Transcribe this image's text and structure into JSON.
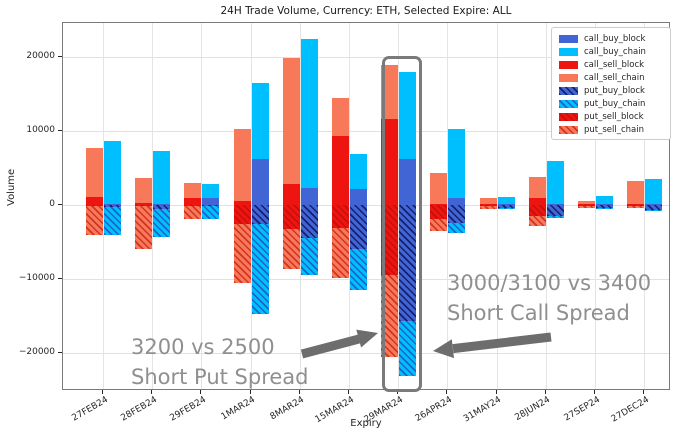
{
  "title": "24H Trade Volume, Currency: ETH, Selected Expire: ALL",
  "y_axis": {
    "label": "Volume",
    "tick_labels": [
      "20000",
      "10000",
      "0",
      "−10000",
      "−20000"
    ]
  },
  "x_axis": {
    "label": "Expiry"
  },
  "legend": {
    "position": "upper right",
    "items": [
      "call_buy_block",
      "call_buy_chain",
      "call_sell_block",
      "call_sell_chain",
      "put_buy_block",
      "put_buy_chain",
      "put_sell_block",
      "put_sell_chain"
    ]
  },
  "annotations": {
    "put_spread": {
      "line1": "3200 vs 2500",
      "line2": "Short Put Spread"
    },
    "call_spread": {
      "line1": "3000/3100 vs 3400",
      "line2": "Short Call Spread"
    }
  },
  "colors": {
    "royalblue": "#4165d4",
    "deepskyblue": "#00bfff",
    "red": "#ee1410",
    "coral": "#f8795a",
    "hatch_navy": "#14206e",
    "hatch_blue": "#1f63c8",
    "hatch_red": "#d23322",
    "hatch_darkred": "#c50f0c",
    "grid": "#e1e1e1",
    "annotation_gray": "#8f8f8f",
    "arrow_gray": "#6d6d6d",
    "highlight_box_gray": "#7a7a7a"
  },
  "chart_data": {
    "type": "bar",
    "stacked": true,
    "grid": true,
    "ylim": [
      -25100,
      24600
    ],
    "y_ticks": [
      20000,
      10000,
      0,
      -10000,
      -20000
    ],
    "categories": [
      "27FEB24",
      "28FEB24",
      "29FEB24",
      "1MAR24",
      "8MAR24",
      "15MAR24",
      "29MAR24",
      "26APR24",
      "31MAY24",
      "28JUN24",
      "27SEP24",
      "27DEC24"
    ],
    "highlighted_category": "29MAR24",
    "series": [
      {
        "name": "call_buy_block",
        "side": "buy",
        "sign": 1,
        "color": "#4165d4",
        "hatch": null,
        "values": [
          200,
          100,
          1000,
          6200,
          2300,
          2100,
          6200,
          1000,
          100,
          100,
          100,
          100
        ]
      },
      {
        "name": "call_buy_chain",
        "side": "buy",
        "sign": 1,
        "color": "#00bfff",
        "hatch": null,
        "values": [
          8400,
          7200,
          1800,
          10300,
          20100,
          4800,
          11800,
          9300,
          1000,
          5800,
          1100,
          3400
        ]
      },
      {
        "name": "call_sell_block",
        "side": "sell",
        "sign": 1,
        "color": "#ee1410",
        "hatch": null,
        "values": [
          1100,
          300,
          1000,
          600,
          2800,
          9300,
          11600,
          100,
          100,
          1000,
          100,
          200
        ]
      },
      {
        "name": "call_sell_chain",
        "side": "sell",
        "sign": 1,
        "color": "#f8795a",
        "hatch": null,
        "values": [
          6600,
          3400,
          2000,
          9700,
          17000,
          5100,
          7300,
          4200,
          900,
          2800,
          500,
          3100
        ]
      },
      {
        "name": "put_buy_block",
        "side": "buy",
        "sign": -1,
        "color": "#4165d4",
        "hatch": "#14206e",
        "values": [
          300,
          500,
          100,
          2500,
          4500,
          6000,
          15700,
          2400,
          400,
          1500,
          400,
          700
        ]
      },
      {
        "name": "put_buy_chain",
        "side": "buy",
        "sign": -1,
        "color": "#00bfff",
        "hatch": "#1f63c8",
        "values": [
          3700,
          3800,
          1800,
          12200,
          4900,
          5500,
          7400,
          1400,
          200,
          200,
          100,
          100
        ]
      },
      {
        "name": "put_sell_block",
        "side": "sell",
        "sign": -1,
        "color": "#ee1410",
        "hatch": "#c50f0c",
        "values": [
          200,
          200,
          100,
          2500,
          3300,
          3100,
          9500,
          1900,
          100,
          1500,
          100,
          100
        ]
      },
      {
        "name": "put_sell_chain",
        "side": "sell",
        "sign": -1,
        "color": "#f8795a",
        "hatch": "#d23322",
        "values": [
          3800,
          5800,
          1800,
          8100,
          5300,
          6700,
          11100,
          1600,
          400,
          1400,
          300,
          300
        ]
      }
    ]
  }
}
